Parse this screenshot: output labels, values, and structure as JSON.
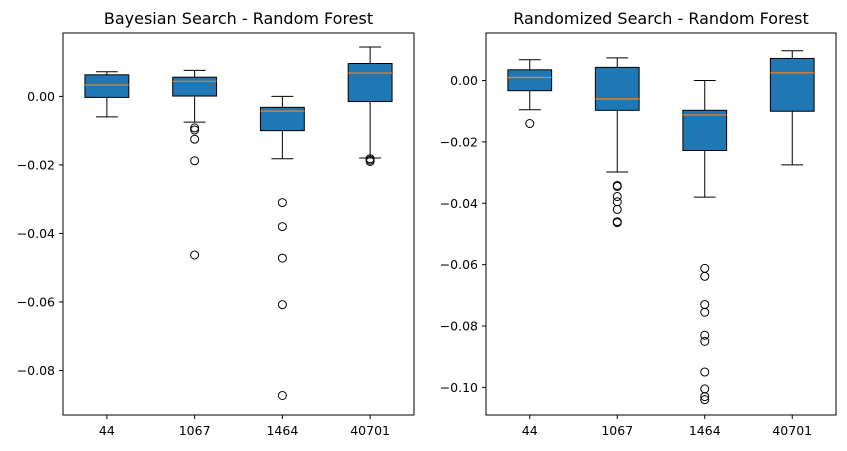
{
  "chart_data": [
    {
      "type": "boxplot",
      "title": "Bayesian Search - Random Forest",
      "xlabel": "",
      "ylabel": "",
      "categories": [
        "44",
        "1067",
        "1464",
        "40701"
      ],
      "ylim": [
        -0.093,
        0.0185
      ],
      "yticks": [
        0.0,
        -0.02,
        -0.04,
        -0.06,
        -0.08
      ],
      "ytick_labels": [
        "0.00",
        "−0.02",
        "−0.04",
        "−0.06",
        "−0.08"
      ],
      "box_color": "#1f77b4",
      "median_color": "#ff7f0e",
      "boxes": [
        {
          "whisker_low": -0.006,
          "q1": -0.0003,
          "median": 0.0033,
          "q3": 0.0063,
          "whisker_high": 0.0072,
          "outliers": []
        },
        {
          "whisker_low": -0.0075,
          "q1": 0.0001,
          "median": 0.0044,
          "q3": 0.0056,
          "whisker_high": 0.0076,
          "outliers": [
            -0.0092,
            -0.0098,
            -0.0125,
            -0.0188,
            -0.0463
          ]
        },
        {
          "whisker_low": -0.0182,
          "q1": -0.01,
          "median": -0.0043,
          "q3": -0.0032,
          "whisker_high": 0.0,
          "outliers": [
            -0.031,
            -0.038,
            -0.0472,
            -0.0608,
            -0.0873
          ]
        },
        {
          "whisker_low": -0.018,
          "q1": -0.0015,
          "median": 0.0068,
          "q3": 0.0096,
          "whisker_high": 0.0144,
          "outliers": [
            -0.0182,
            -0.0186,
            -0.019
          ]
        }
      ]
    },
    {
      "type": "boxplot",
      "title": "Randomized Search - Random Forest",
      "xlabel": "",
      "ylabel": "",
      "categories": [
        "44",
        "1067",
        "1464",
        "40701"
      ],
      "ylim": [
        -0.109,
        0.0155
      ],
      "yticks": [
        0.0,
        -0.02,
        -0.04,
        -0.06,
        -0.08,
        -0.1
      ],
      "ytick_labels": [
        "0.00",
        "−0.02",
        "−0.04",
        "−0.06",
        "−0.08",
        "−0.10"
      ],
      "box_color": "#1f77b4",
      "median_color": "#ff7f0e",
      "boxes": [
        {
          "whisker_low": -0.0095,
          "q1": -0.0033,
          "median": 0.001,
          "q3": 0.0035,
          "whisker_high": 0.0068,
          "outliers": [
            -0.014
          ]
        },
        {
          "whisker_low": -0.0298,
          "q1": -0.0097,
          "median": -0.006,
          "q3": 0.0043,
          "whisker_high": 0.0074,
          "outliers": [
            -0.0342,
            -0.0345,
            -0.0378,
            -0.0395,
            -0.042,
            -0.046,
            -0.0463
          ]
        },
        {
          "whisker_low": -0.038,
          "q1": -0.0228,
          "median": -0.0112,
          "q3": -0.0097,
          "whisker_high": 0.0,
          "outliers": [
            -0.0612,
            -0.0638,
            -0.073,
            -0.0755,
            -0.083,
            -0.085,
            -0.095,
            -0.1005,
            -0.103,
            -0.104
          ]
        },
        {
          "whisker_low": -0.0275,
          "q1": -0.01,
          "median": 0.0025,
          "q3": 0.0072,
          "whisker_high": 0.0097,
          "outliers": []
        }
      ]
    }
  ]
}
